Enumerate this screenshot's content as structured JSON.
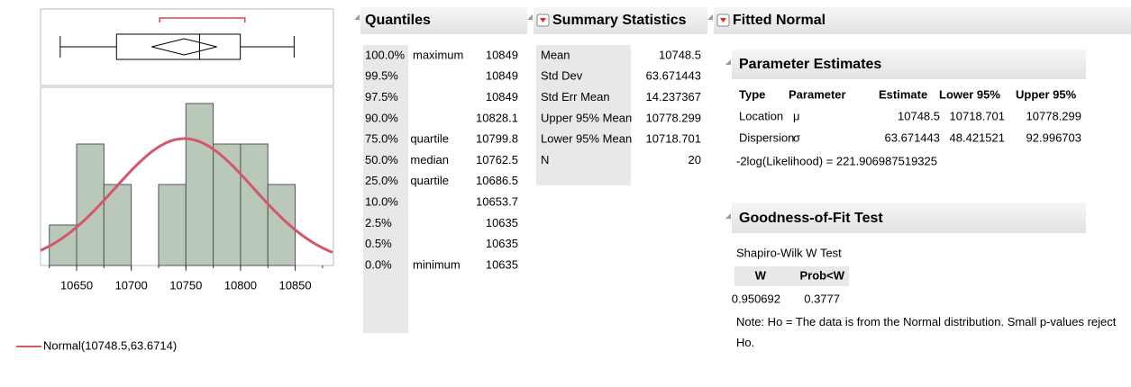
{
  "distribution": {
    "type": "histogram",
    "bins": [
      10625,
      10650,
      10675,
      10700,
      10725,
      10750,
      10775,
      10800,
      10825,
      10850
    ],
    "counts": [
      1,
      3,
      2,
      0,
      2,
      4,
      3,
      3,
      2
    ],
    "xlim": [
      10617,
      10885
    ],
    "xticks": [
      10650,
      10700,
      10750,
      10800,
      10850
    ],
    "ylim": [
      0,
      4.4
    ],
    "bar_color": "#b9c8b9",
    "curve_color": "#d4566b",
    "shortest_half": [
      10726,
      10804
    ],
    "legend": "Normal(10748.5,63.6714)"
  },
  "quantiles": {
    "title": "Quantiles",
    "rows": [
      [
        "100.0%",
        "maximum",
        10849
      ],
      [
        "99.5%",
        null,
        10849
      ],
      [
        "97.5%",
        null,
        10849
      ],
      [
        "90.0%",
        null,
        10828.1
      ],
      [
        "75.0%",
        "quartile",
        10799.8
      ],
      [
        "50.0%",
        "median",
        10762.5
      ],
      [
        "25.0%",
        "quartile",
        10686.5
      ],
      [
        "10.0%",
        null,
        10653.7
      ],
      [
        "2.5%",
        null,
        10635
      ],
      [
        "0.5%",
        null,
        10635
      ],
      [
        "0.0%",
        "minimum",
        10635
      ]
    ]
  },
  "summary": {
    "title": "Summary Statistics",
    "rows": [
      [
        "Mean",
        10748.5
      ],
      [
        "Std Dev",
        63.671443
      ],
      [
        "Std Err Mean",
        14.237367
      ],
      [
        "Upper 95% Mean",
        10778.299
      ],
      [
        "Lower 95% Mean",
        10718.701
      ],
      [
        "N",
        20
      ]
    ]
  },
  "fitted": {
    "title": "Fitted Normal",
    "param_title": "Parameter Estimates",
    "header": [
      "Type",
      "Parameter",
      "Estimate",
      "Lower 95%",
      "Upper 95%"
    ],
    "rows": [
      [
        "Location",
        "μ",
        10748.5,
        10718.701,
        10778.299
      ],
      [
        "Dispersion",
        "σ",
        63.671443,
        48.421521,
        92.996703
      ]
    ],
    "loglik": "-2log(Likelihood) = 221.906987519325",
    "gof_title": "Goodness-of-Fit Test",
    "test": "Shapiro-Wilk W Test",
    "gof_header": [
      "W",
      "Prob<W"
    ],
    "gof_row": [
      0.950692,
      0.3777
    ],
    "note": "Note: Ho = The data is from the Normal distribution. Small p-values reject Ho."
  }
}
